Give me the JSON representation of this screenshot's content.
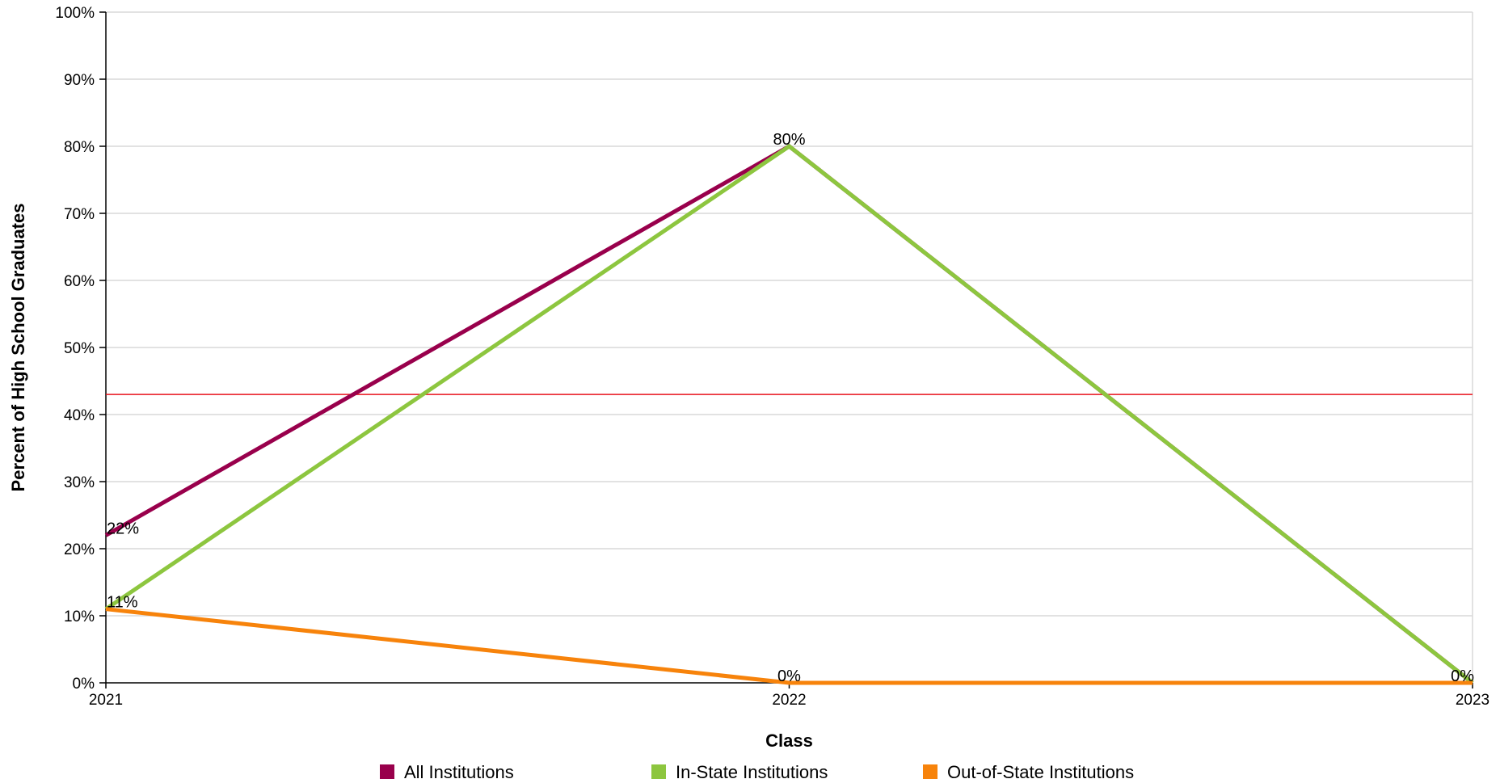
{
  "chart_data": {
    "type": "line",
    "x": [
      "2021",
      "2022",
      "2023"
    ],
    "xlabel": "Class",
    "ylabel": "Percent of High School Graduates",
    "ylim": [
      0,
      100
    ],
    "y_ticks": [
      "0%",
      "10%",
      "20%",
      "30%",
      "40%",
      "50%",
      "60%",
      "70%",
      "80%",
      "90%",
      "100%"
    ],
    "grid": true,
    "legend_position": "bottom",
    "reference_line": {
      "value": 43,
      "color": "#e8131b"
    },
    "series": [
      {
        "name": "All Institutions",
        "color": "#99004c",
        "values": [
          22,
          80,
          0
        ],
        "labels": [
          "22%",
          "80%",
          null
        ]
      },
      {
        "name": "In-State Institutions",
        "color": "#8dc63f",
        "values": [
          11,
          80,
          0
        ],
        "labels": [
          null,
          null,
          "0%"
        ]
      },
      {
        "name": "Out-of-State Institutions",
        "color": "#f7830b",
        "values": [
          11,
          0,
          0
        ],
        "labels": [
          "11%",
          "0%",
          null
        ]
      }
    ]
  }
}
